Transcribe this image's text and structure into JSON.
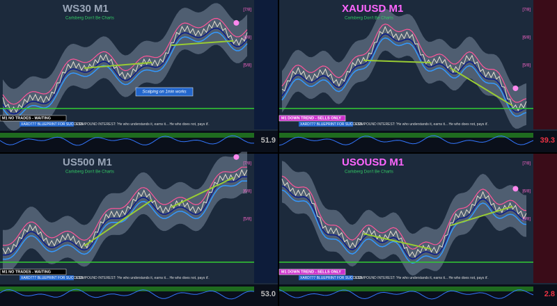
{
  "panes": [
    {
      "title": "WS30 M1",
      "subtitle": "Carlsberg Don't Be Charts",
      "status": "M1 NO TRADES - WAITING",
      "brand": "XARD777 BLUEPRINT FOR SUCCESS",
      "footer": "COMPOUND INTEREST: 'He who understands it, earns it... He who does not, pays it'.",
      "levels": [
        "[7/8]",
        "[6/8]",
        "[5/8]"
      ],
      "oscillator_value": "51.9",
      "note": "Scalping on 1min works"
    },
    {
      "title": "XAUUSD M1",
      "subtitle": "Carlsberg Don't Be Charts",
      "status": "M1 DOWN TREND - SELLS ONLY",
      "brand": "XARD777 BLUEPRINT FOR SUCCESS",
      "footer": "COMPOUND INTEREST: 'He who understands it, earns it... He who does not, pays it'.",
      "levels": [
        "[7/8]",
        "[6/8]",
        "[5/8]"
      ],
      "oscillator_value": "39.3"
    },
    {
      "title": "US500 M1",
      "subtitle": "Carlsberg Don't Be Charts",
      "status": "M1 NO TRADES - WAITING",
      "brand": "XARD777 BLUEPRINT FOR SUCCESS",
      "footer": "COMPOUND INTEREST: 'He who understands it, earns it... He who does not, pays it'.",
      "levels": [
        "[7/8]",
        "[6/8]",
        "[5/8]"
      ],
      "oscillator_value": "53.0"
    },
    {
      "title": "USOUSD M1",
      "subtitle": "Carlsberg Don't Be Charts",
      "status": "M1 DOWN TREND - SELLS ONLY",
      "brand": "XARD777 BLUEPRINT FOR SUCCESS",
      "footer": "COMPOUND INTEREST: 'He who understands it, earns it... He who does not, pays it'.",
      "levels": [
        "[7/8]",
        "[6/8]",
        "[5/8]"
      ],
      "oscillator_value": "2.8"
    }
  ]
}
